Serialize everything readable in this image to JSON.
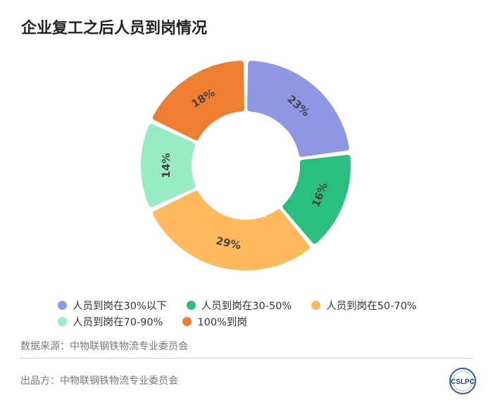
{
  "title": "企业复工之后人员到岗情况",
  "chart_data": {
    "type": "pie",
    "donut": true,
    "title": "企业复工之后人员到岗情况",
    "categories": [
      "人员到岗在30%以下",
      "人员到岗在30-50%",
      "人员到岗在50-70%",
      "人员到岗在70-90%",
      "100%到岗"
    ],
    "values": [
      23,
      16,
      29,
      14,
      18
    ],
    "labels": [
      "23%",
      "16%",
      "29%",
      "14%",
      "18%"
    ],
    "colors": [
      "#8d97e4",
      "#2bbf7e",
      "#fdb95c",
      "#98ecc4",
      "#ed7e32"
    ],
    "start": "top",
    "direction": "clockwise",
    "legend_position": "bottom"
  },
  "footer": {
    "source": "数据来源：中物联钢铁物流专业委员会",
    "producer": "出品方：中物联钢铁物流专业委员会",
    "logo_text": "CSLPC"
  }
}
